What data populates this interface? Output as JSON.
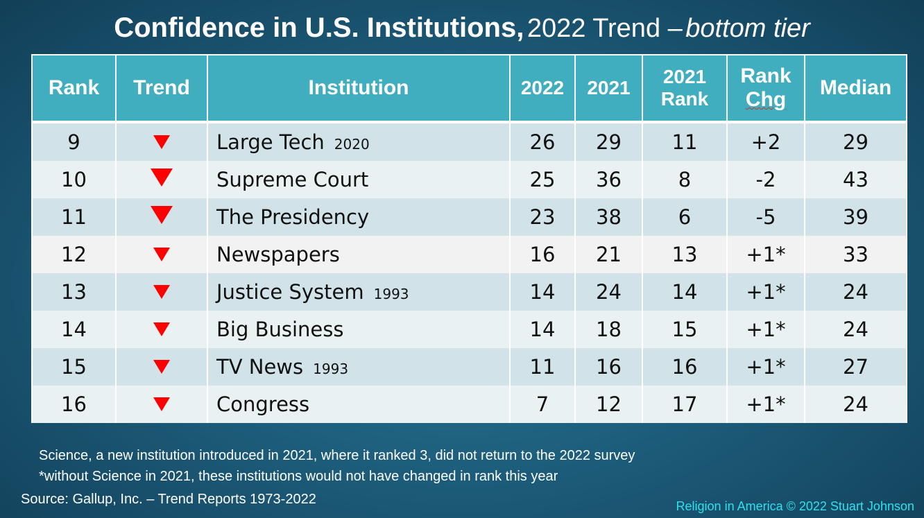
{
  "title": {
    "main": "Confidence in U.S. Institutions,",
    "sub": "2022 Trend –",
    "emphasis": "bottom tier"
  },
  "table": {
    "headers": {
      "rank": "Rank",
      "trend": "Trend",
      "institution": "Institution",
      "y2022": "2022",
      "y2021": "2021",
      "rank2021_line1": "2021",
      "rank2021_line2": "Rank",
      "rankchg_line1": "Rank",
      "rankchg_line2": "Chg",
      "median": "Median"
    },
    "trend_icon": "down-triangle-icon",
    "trend_color": "#ff0000",
    "rows": [
      {
        "rank": "9",
        "trend": "down-small",
        "institution": "Large Tech",
        "since": "2020",
        "y2022": "26",
        "y2021": "29",
        "rank2021": "11",
        "rank_chg": "+2",
        "median": "29"
      },
      {
        "rank": "10",
        "trend": "down-large",
        "institution": "Supreme Court",
        "since": "",
        "y2022": "25",
        "y2021": "36",
        "rank2021": "8",
        "rank_chg": "-2",
        "median": "43"
      },
      {
        "rank": "11",
        "trend": "down-large",
        "institution": "The Presidency",
        "since": "",
        "y2022": "23",
        "y2021": "38",
        "rank2021": "6",
        "rank_chg": "-5",
        "median": "39"
      },
      {
        "rank": "12",
        "trend": "down-small",
        "institution": "Newspapers",
        "since": "",
        "y2022": "16",
        "y2021": "21",
        "rank2021": "13",
        "rank_chg": "+1*",
        "median": "33"
      },
      {
        "rank": "13",
        "trend": "down-small",
        "institution": "Justice System",
        "since": "1993",
        "y2022": "14",
        "y2021": "24",
        "rank2021": "14",
        "rank_chg": "+1*",
        "median": "24"
      },
      {
        "rank": "14",
        "trend": "down-small",
        "institution": "Big Business",
        "since": "",
        "y2022": "14",
        "y2021": "18",
        "rank2021": "15",
        "rank_chg": "+1*",
        "median": "24"
      },
      {
        "rank": "15",
        "trend": "down-small",
        "institution": "TV News",
        "since": "1993",
        "y2022": "11",
        "y2021": "16",
        "rank2021": "16",
        "rank_chg": "+1*",
        "median": "27"
      },
      {
        "rank": "16",
        "trend": "down-small",
        "institution": "Congress",
        "since": "",
        "y2022": "7",
        "y2021": "12",
        "rank2021": "17",
        "rank_chg": "+1*",
        "median": "24"
      }
    ]
  },
  "notes": {
    "line1": "Science, a new institution introduced in 2021, where it ranked 3, did not return to the 2022 survey",
    "line2": "*without Science in 2021, these institutions would not have changed in rank this year"
  },
  "source": "Source: Gallup, Inc. – Trend Reports 1973-2022",
  "copyright": "Religion in America © 2022 Stuart Johnson",
  "colors": {
    "header_bg": "#41aebf",
    "row_odd": "#d1e3e8",
    "row_even": "#e9f1f3",
    "copyright": "#2fe0ee"
  }
}
